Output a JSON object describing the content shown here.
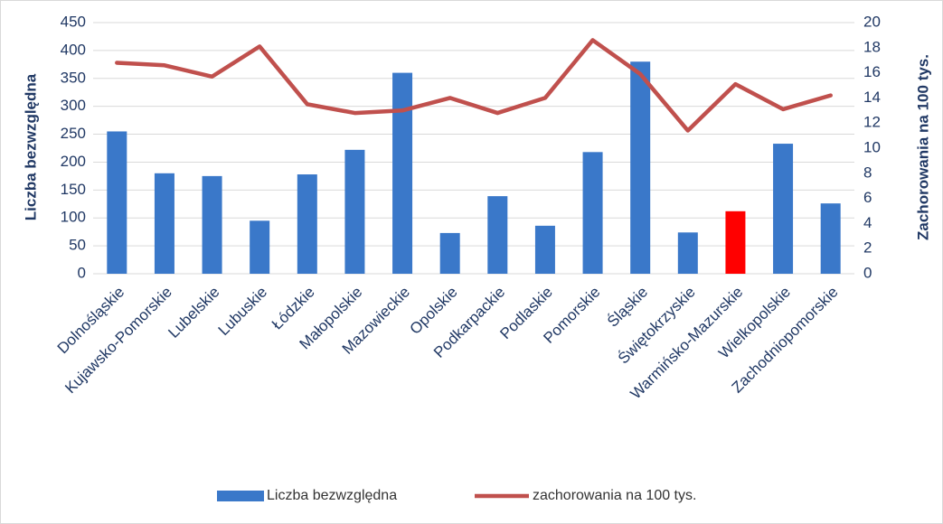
{
  "chart_data": {
    "type": "bar_line",
    "categories": [
      "Dolnośląskie",
      "Kujawsko-Pomorskie",
      "Lubelskie",
      "Lubuskie",
      "Łódzkie",
      "Małopolskie",
      "Mazowieckie",
      "Opolskie",
      "Podkarpackie",
      "Podlaskie",
      "Pomorskie",
      "Śląskie",
      "Świętokrzyskie",
      "Warmińsko-Mazurskie",
      "Wielkopolskie",
      "Zachodniopomorskie"
    ],
    "ylabel": "Liczba bezwzględna",
    "y2label": "Zachorowania na 100 tys.",
    "ylim": [
      0,
      450
    ],
    "yticks": [
      0,
      50,
      100,
      150,
      200,
      250,
      300,
      350,
      400,
      450
    ],
    "y2lim": [
      0,
      20
    ],
    "y2ticks": [
      0,
      2,
      4,
      6,
      8,
      10,
      12,
      14,
      16,
      18,
      20
    ],
    "grid": true,
    "legend": "bottom",
    "series": [
      {
        "name": "Liczba bezwzględna",
        "type": "bar",
        "color": "#3a78c9",
        "colors": [
          "#3a78c9",
          "#3a78c9",
          "#3a78c9",
          "#3a78c9",
          "#3a78c9",
          "#3a78c9",
          "#3a78c9",
          "#3a78c9",
          "#3a78c9",
          "#3a78c9",
          "#3a78c9",
          "#3a78c9",
          "#3a78c9",
          "#ff0000",
          "#3a78c9",
          "#3a78c9"
        ],
        "values": [
          255,
          180,
          175,
          95,
          178,
          222,
          360,
          73,
          139,
          86,
          218,
          380,
          74,
          112,
          233,
          126
        ]
      },
      {
        "name": "zachorowania na 100 tys.",
        "type": "line",
        "color": "#c0504d",
        "axis": "y2",
        "values": [
          16.8,
          16.6,
          15.7,
          18.1,
          13.5,
          12.8,
          13.0,
          14.0,
          12.8,
          14.0,
          18.6,
          15.9,
          11.4,
          15.1,
          13.1,
          14.2
        ]
      }
    ]
  }
}
